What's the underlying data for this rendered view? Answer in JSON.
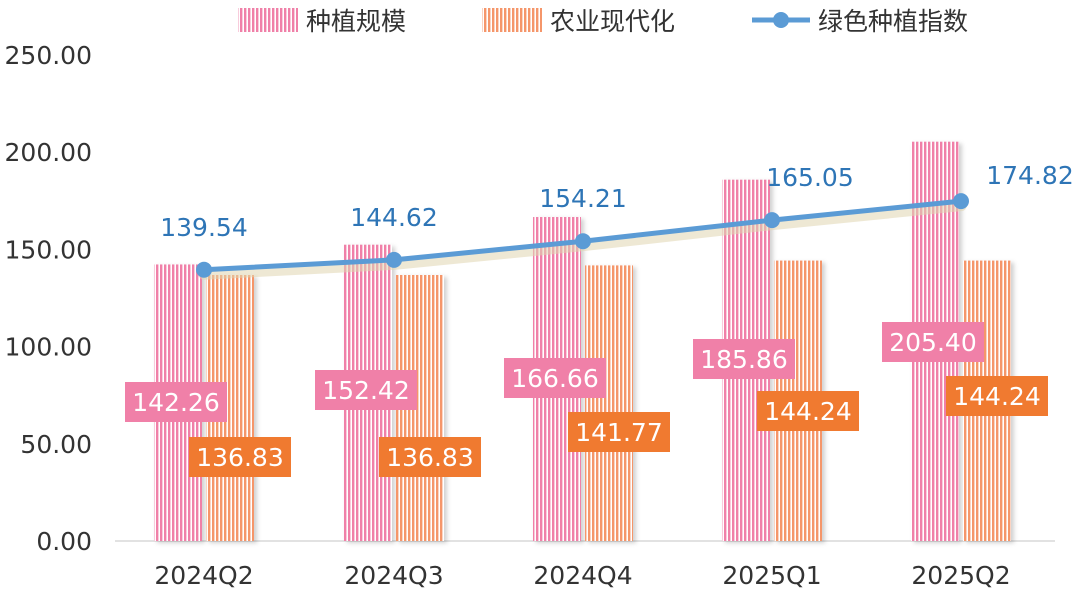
{
  "chart_data": {
    "type": "bar",
    "categories": [
      "2024Q2",
      "2024Q3",
      "2024Q4",
      "2025Q1",
      "2025Q2"
    ],
    "series": [
      {
        "name": "种植规模",
        "kind": "bar",
        "color": "#f080a8",
        "values": [
          142.26,
          152.42,
          166.66,
          185.86,
          205.4
        ],
        "labels": [
          "142.26",
          "152.42",
          "166.66",
          "185.86",
          "205.40"
        ]
      },
      {
        "name": "农业现代化",
        "kind": "bar",
        "color": "#f5966a",
        "values": [
          136.83,
          136.83,
          141.77,
          144.24,
          144.24
        ],
        "labels": [
          "136.83",
          "136.83",
          "141.77",
          "144.24",
          "144.24"
        ]
      },
      {
        "name": "绿色种植指数",
        "kind": "line",
        "color": "#5b9bd5",
        "values": [
          139.54,
          144.62,
          154.21,
          165.05,
          174.82
        ],
        "labels": [
          "139.54",
          "144.62",
          "154.21",
          "165.05",
          "174.82"
        ]
      }
    ],
    "yticks": [
      "0.00",
      "50.00",
      "100.00",
      "150.00",
      "200.00",
      "250.00"
    ],
    "ylim": [
      0,
      250
    ],
    "label_colors": {
      "bar1": "#f080a8",
      "bar2": "#f07a30",
      "line": "#2e75b6"
    },
    "legend_position": "top",
    "grid": false
  }
}
